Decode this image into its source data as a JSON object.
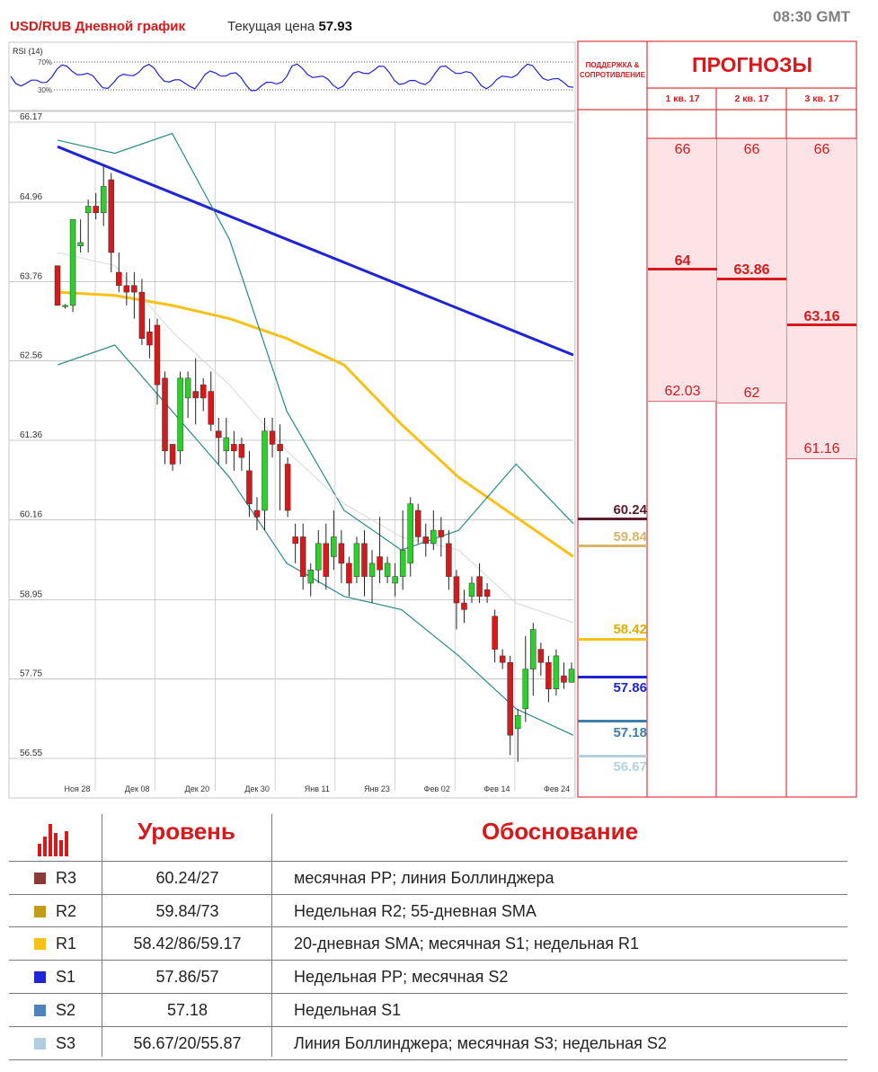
{
  "header": {
    "title": "USD/RUB Дневной график",
    "price_label": "Текущая цена",
    "price_value": "57.93",
    "time": "08:30 GMT"
  },
  "rsi": {
    "label": "RSI (14)",
    "levels": [
      "70%",
      "30%"
    ]
  },
  "chart_data": {
    "type": "candlestick",
    "ylim": [
      56.55,
      66.17
    ],
    "y_ticks": [
      "66.17",
      "64.96",
      "63.76",
      "62.56",
      "61.36",
      "60.16",
      "58.95",
      "57.75",
      "56.55"
    ],
    "x_ticks": [
      "Ноя 28",
      "Дек 08",
      "Дек 20",
      "Дек 30",
      "Янв 11",
      "Янв 23",
      "Фев 02",
      "Фев 14",
      "Фев 24"
    ],
    "candles": [
      [
        64.0,
        63.4,
        63.4,
        64.0
      ],
      [
        63.4,
        63.4,
        63.35,
        63.42
      ],
      [
        63.4,
        64.7,
        63.3,
        64.7
      ],
      [
        64.3,
        64.35,
        64.2,
        64.7
      ],
      [
        64.8,
        64.9,
        64.2,
        65.0
      ],
      [
        64.9,
        64.8,
        64.7,
        65.1
      ],
      [
        64.8,
        65.2,
        64.6,
        65.5
      ],
      [
        65.3,
        64.2,
        63.9,
        65.4
      ],
      [
        63.9,
        63.7,
        63.6,
        64.2
      ],
      [
        63.7,
        63.6,
        63.4,
        63.9
      ],
      [
        63.7,
        63.6,
        63.2,
        63.9
      ],
      [
        63.6,
        62.9,
        62.8,
        63.8
      ],
      [
        63.0,
        62.8,
        62.6,
        63.2
      ],
      [
        63.1,
        62.2,
        61.9,
        63.2
      ],
      [
        62.3,
        61.2,
        61.0,
        62.4
      ],
      [
        61.3,
        61.0,
        60.9,
        61.3
      ],
      [
        61.2,
        62.3,
        61.0,
        62.4
      ],
      [
        62.0,
        62.3,
        61.7,
        62.4
      ],
      [
        62.1,
        62.0,
        61.6,
        62.6
      ],
      [
        62.2,
        62.0,
        61.8,
        62.3
      ],
      [
        62.1,
        61.6,
        61.5,
        62.4
      ],
      [
        61.5,
        61.4,
        61.0,
        61.7
      ],
      [
        61.2,
        61.4,
        61.0,
        61.7
      ],
      [
        61.3,
        61.2,
        60.9,
        61.5
      ],
      [
        61.3,
        61.1,
        60.9,
        61.4
      ],
      [
        60.9,
        60.4,
        60.2,
        61.2
      ],
      [
        60.3,
        60.2,
        60.0,
        60.5
      ],
      [
        60.3,
        61.5,
        60.0,
        61.7
      ],
      [
        61.5,
        61.3,
        61.1,
        61.7
      ],
      [
        61.3,
        61.2,
        60.3,
        61.6
      ],
      [
        61.0,
        60.3,
        60.2,
        61.1
      ],
      [
        59.9,
        59.8,
        59.5,
        60.1
      ],
      [
        59.9,
        59.3,
        59.1,
        60.1
      ],
      [
        59.2,
        59.4,
        59.0,
        59.5
      ],
      [
        59.4,
        59.8,
        59.2,
        60.0
      ],
      [
        59.8,
        59.3,
        59.1,
        60.1
      ],
      [
        59.6,
        59.9,
        59.4,
        60.3
      ],
      [
        59.8,
        59.5,
        59.2,
        60.0
      ],
      [
        59.5,
        59.2,
        59.0,
        59.6
      ],
      [
        59.3,
        59.8,
        59.2,
        59.9
      ],
      [
        59.8,
        59.3,
        59.0,
        60.0
      ],
      [
        59.3,
        59.5,
        58.9,
        59.7
      ],
      [
        59.6,
        59.4,
        59.2,
        60.2
      ],
      [
        59.3,
        59.5,
        59.2,
        59.6
      ],
      [
        59.2,
        59.3,
        59.0,
        59.5
      ],
      [
        59.3,
        59.7,
        59.1,
        60.3
      ],
      [
        59.5,
        60.4,
        59.3,
        60.5
      ],
      [
        60.3,
        59.9,
        59.8,
        60.4
      ],
      [
        59.9,
        59.8,
        59.6,
        60.1
      ],
      [
        59.8,
        60.0,
        59.7,
        60.3
      ],
      [
        60.0,
        59.9,
        59.6,
        60.2
      ],
      [
        59.8,
        59.3,
        59.1,
        60.0
      ],
      [
        59.3,
        58.9,
        58.5,
        59.4
      ],
      [
        58.9,
        58.8,
        58.6,
        59.1
      ],
      [
        59.0,
        59.2,
        58.9,
        59.3
      ],
      [
        59.3,
        59.0,
        58.9,
        59.5
      ],
      [
        59.1,
        59.0,
        58.9,
        59.2
      ],
      [
        58.7,
        58.2,
        58.0,
        58.8
      ],
      [
        58.1,
        58.0,
        57.9,
        58.2
      ],
      [
        58.0,
        56.9,
        56.6,
        58.1
      ],
      [
        57.0,
        57.2,
        56.5,
        57.3
      ],
      [
        57.3,
        57.9,
        57.1,
        58.4
      ],
      [
        57.9,
        58.5,
        57.5,
        58.6
      ],
      [
        58.2,
        58.0,
        57.8,
        58.3
      ],
      [
        58.0,
        57.6,
        57.4,
        58.1
      ],
      [
        57.6,
        58.1,
        57.5,
        58.2
      ],
      [
        57.8,
        57.7,
        57.6,
        58.0
      ],
      [
        57.7,
        57.9,
        57.7,
        58.0
      ]
    ],
    "series": [
      {
        "values": [
          65.8,
          65.45,
          65.1,
          64.75,
          64.4,
          64.05,
          63.7,
          63.35,
          63.0,
          62.65
        ]
      },
      {
        "values": [
          63.6,
          63.55,
          63.4,
          63.2,
          62.9,
          62.5,
          61.6,
          60.8,
          60.2,
          59.6
        ]
      },
      {
        "values": [
          65.9,
          65.7,
          66.0,
          64.4,
          61.8,
          60.3,
          59.7,
          60.0,
          61.0,
          60.1
        ]
      },
      {
        "values": [
          62.5,
          62.8,
          61.8,
          60.8,
          59.5,
          59.0,
          58.8,
          58.1,
          57.3,
          56.9
        ]
      },
      {
        "values": [
          64.2,
          64.0,
          63.0,
          62.2,
          61.2,
          60.4,
          59.9,
          59.7,
          58.9,
          58.6
        ]
      }
    ],
    "colors": {
      "bull": "#2dcf2d",
      "bear": "#d7191c",
      "sma200": "#1f24d4",
      "sma55": "#f6c21a",
      "bollinger": "#2a8a8a",
      "sma20": "#d8d8d8",
      "rsi": "#1f24d4"
    }
  },
  "forecast": {
    "title": "ПРОГНОЗЫ",
    "sr_label": "ПОДДЕРЖКА & СОПРОТИВЛЕНИЕ",
    "quarters": [
      {
        "label": "1 кв. 17",
        "high": "66",
        "mid": "64",
        "low": "62.03"
      },
      {
        "label": "2 кв. 17",
        "high": "66",
        "mid": "63.86",
        "low": "62"
      },
      {
        "label": "3 кв. 17",
        "high": "66",
        "mid": "63.16",
        "low": "61.16"
      }
    ],
    "levels": [
      {
        "value": "60.24",
        "color": "#5c1d2f"
      },
      {
        "value": "59.84",
        "color": "#d8b56a"
      },
      {
        "value": "58.42",
        "color": "#f6c21a"
      },
      {
        "value": "57.86",
        "color": "#1f24d4"
      },
      {
        "value": "57.18",
        "color": "#3f7ea8"
      },
      {
        "value": "56.67",
        "color": "#b3d2de"
      }
    ]
  },
  "table": {
    "head_level": "Уровень",
    "head_reason": "Обоснование",
    "rows": [
      {
        "name": "R3",
        "color": "#8b3a3a",
        "level": "60.24/27",
        "reason": "месячная PP; линия Боллинджера"
      },
      {
        "name": "R2",
        "color": "#c49a1a",
        "level": "59.84/73",
        "reason": "Недельная R2; 55-дневная SMA"
      },
      {
        "name": "R1",
        "color": "#f6c21a",
        "level": "58.42/86/59.17",
        "reason": "20-дневная SMA; месячная  S1; недельная R1"
      },
      {
        "name": "S1",
        "color": "#1f24d4",
        "level": "57.86/57",
        "reason": "Недельная PP; месячная  S2"
      },
      {
        "name": "S2",
        "color": "#4f81bd",
        "level": "57.18",
        "reason": "Недельная S1"
      },
      {
        "name": "S3",
        "color": "#b3cde0",
        "level": "56.67/20/55.87",
        "reason": "Линия Боллинджера; месячная  S3; недельная S2"
      }
    ]
  }
}
